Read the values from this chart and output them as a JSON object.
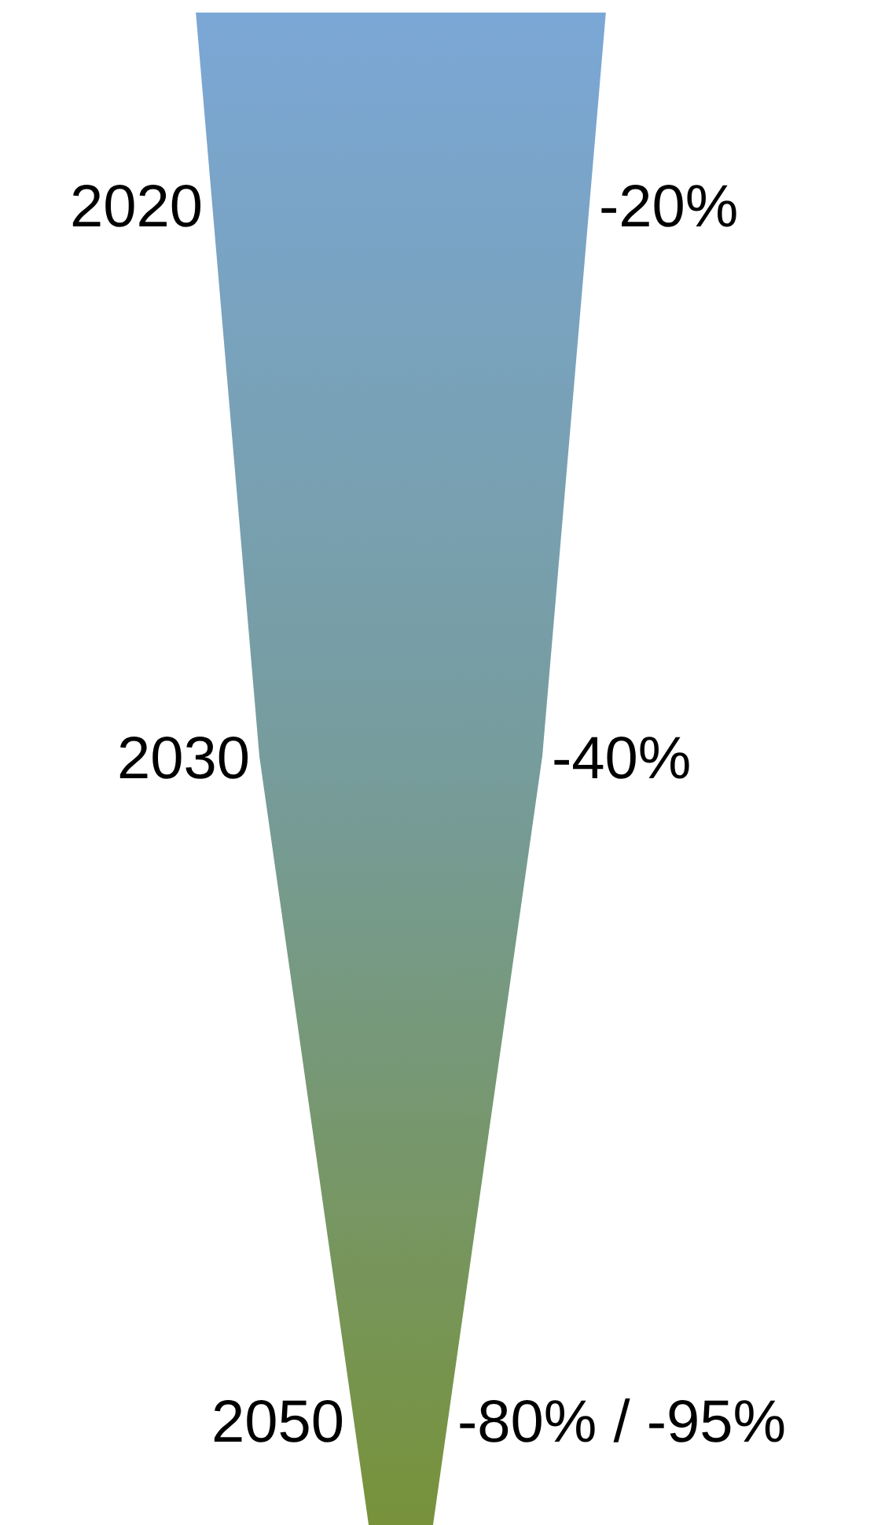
{
  "chart_data": {
    "type": "other",
    "categories": [
      "2020",
      "2030",
      "2050"
    ],
    "values": [
      -20,
      -40,
      -80
    ],
    "value_labels": [
      "-20%",
      "-40%",
      "-80% / -95%"
    ],
    "colors": [
      "#7ba7d6",
      "#769c9c",
      "#77923a"
    ]
  }
}
